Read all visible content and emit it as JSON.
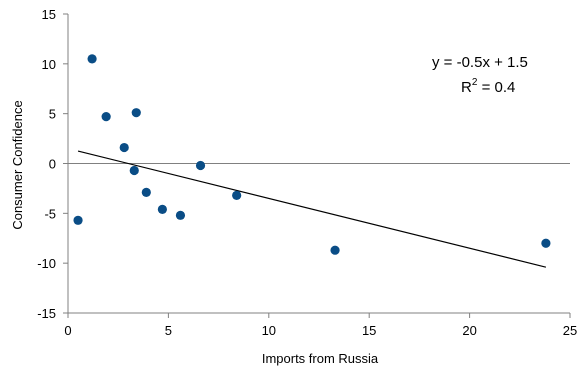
{
  "chart_data": {
    "type": "scatter",
    "xlabel": "Imports from Russia",
    "ylabel": "Consumer Confidence",
    "xlim": [
      0,
      25
    ],
    "ylim": [
      -15,
      15
    ],
    "xticks": [
      0,
      5,
      10,
      15,
      20,
      25
    ],
    "yticks": [
      -15,
      -10,
      -5,
      0,
      5,
      10,
      15
    ],
    "grid": false,
    "points": [
      {
        "x": 0.5,
        "y": -5.7
      },
      {
        "x": 1.2,
        "y": 10.5
      },
      {
        "x": 1.9,
        "y": 4.7
      },
      {
        "x": 2.8,
        "y": 1.6
      },
      {
        "x": 3.3,
        "y": -0.7
      },
      {
        "x": 3.4,
        "y": 5.1
      },
      {
        "x": 3.9,
        "y": -2.9
      },
      {
        "x": 4.7,
        "y": -4.6
      },
      {
        "x": 5.6,
        "y": -5.2
      },
      {
        "x": 6.6,
        "y": -0.2
      },
      {
        "x": 8.4,
        "y": -3.2
      },
      {
        "x": 13.3,
        "y": -8.7
      },
      {
        "x": 23.8,
        "y": -8.0
      }
    ],
    "trendline": {
      "slope": -0.5,
      "intercept": 1.5,
      "x_range": [
        0.5,
        23.8
      ]
    },
    "annotation": {
      "equation": "y = -0.5x + 1.5",
      "r2_prefix": "R",
      "r2_sup": "2",
      "r2_suffix": " = 0.4"
    },
    "colors": {
      "points": "#0a4d86",
      "line": "#000000",
      "axis": "#808080"
    }
  }
}
